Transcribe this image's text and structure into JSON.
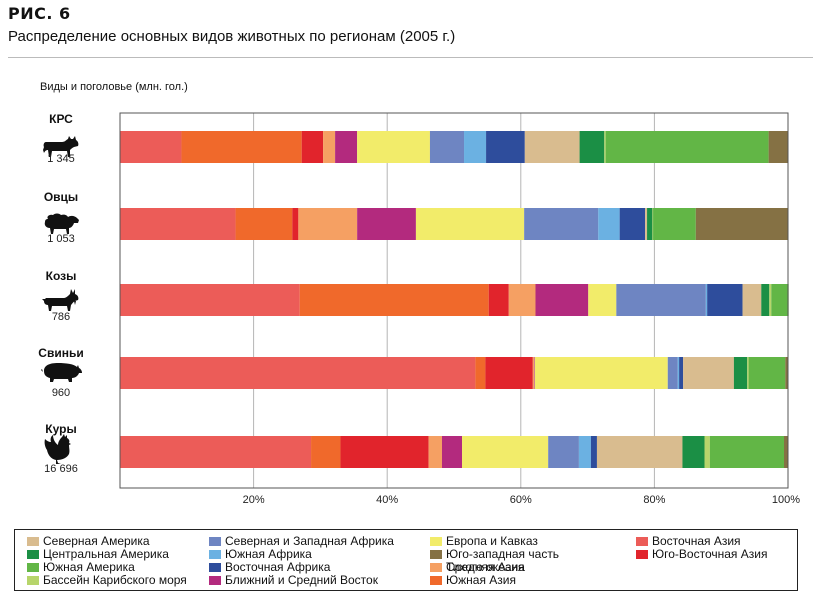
{
  "figure": {
    "label": "РИС.  6",
    "title": "Распределение основных видов животных по регионам (2005 г.)"
  },
  "chart_data": {
    "type": "bar",
    "orientation": "horizontal",
    "stacked": true,
    "ylabel": "Виды и поголовье (млн. гол.)",
    "xlim": [
      0,
      100
    ],
    "xticks": [
      "20%",
      "40%",
      "60%",
      "80%",
      "100%"
    ],
    "grid": true,
    "legend_position": "bottom",
    "categories": [
      {
        "name": "КРС",
        "value": "1 345",
        "icon": "cow-icon"
      },
      {
        "name": "Овцы",
        "value": "1 053",
        "icon": "sheep-icon"
      },
      {
        "name": "Козы",
        "value": "786",
        "icon": "goat-icon"
      },
      {
        "name": "Свиньи",
        "value": "960",
        "icon": "pig-icon"
      },
      {
        "name": "Куры",
        "value": "16 696",
        "icon": "chicken-icon"
      }
    ],
    "series": [
      {
        "name": "Восточная Азия",
        "color": "#EC5C58",
        "values": [
          9.2,
          17.3,
          26.9,
          53.2,
          28.6
        ]
      },
      {
        "name": "Южная Азия",
        "color": "#F0692B",
        "values": [
          18.0,
          8.5,
          28.3,
          1.5,
          4.4
        ]
      },
      {
        "name": "Юго-Восточная Азия",
        "color": "#E1242C",
        "values": [
          3.2,
          0.9,
          3.0,
          7.1,
          13.2
        ]
      },
      {
        "name": "Средняя Азия",
        "color": "#F5A063",
        "values": [
          1.8,
          8.8,
          4.0,
          0.2,
          2.0
        ]
      },
      {
        "name": "Ближний и Средний Восток",
        "color": "#B32A7E",
        "values": [
          3.3,
          8.8,
          7.9,
          0.1,
          3.0
        ]
      },
      {
        "name": "Европа и Кавказ",
        "color": "#F2EC6A",
        "values": [
          10.9,
          16.2,
          4.2,
          19.9,
          12.9
        ]
      },
      {
        "name": "Северная и Западная Африка",
        "color": "#6E85C2",
        "values": [
          5.1,
          11.1,
          13.4,
          1.5,
          4.6
        ]
      },
      {
        "name": "Южная Африка",
        "color": "#6BB1E2",
        "values": [
          3.3,
          3.2,
          0.2,
          0.2,
          1.8
        ]
      },
      {
        "name": "Восточная Африка",
        "color": "#2E4D9C",
        "values": [
          5.8,
          3.8,
          5.3,
          0.6,
          0.9
        ]
      },
      {
        "name": "Северная Америка",
        "color": "#D9BC8F",
        "values": [
          8.2,
          0.3,
          2.8,
          7.6,
          12.8
        ]
      },
      {
        "name": "Центральная Америка",
        "color": "#1B8F45",
        "values": [
          3.7,
          0.8,
          1.2,
          2.0,
          3.3
        ]
      },
      {
        "name": "Бассейн Карибского моря",
        "color": "#B7D56B",
        "values": [
          0.2,
          0.1,
          0.3,
          0.2,
          0.8
        ]
      },
      {
        "name": "Южная Америка",
        "color": "#62B646",
        "values": [
          24.4,
          6.4,
          2.6,
          5.5,
          11.1
        ]
      },
      {
        "name": "Юго-западная часть Тихого океана",
        "color": "#857144",
        "values": [
          2.9,
          13.8,
          0.0,
          0.4,
          0.6
        ]
      }
    ]
  },
  "legend": [
    {
      "label": "Северная Америка",
      "color": "#D9BC8F"
    },
    {
      "label": "Центральная Америка",
      "color": "#1B8F45"
    },
    {
      "label": "Южная Америка",
      "color": "#62B646"
    },
    {
      "label": "Бассейн Карибского моря",
      "color": "#B7D56B"
    },
    {
      "label": "Северная и Западная Африка",
      "color": "#6E85C2"
    },
    {
      "label": "Южная Африка",
      "color": "#6BB1E2"
    },
    {
      "label": "Восточная Африка",
      "color": "#2E4D9C"
    },
    {
      "label": "Ближний и Средний Восток",
      "color": "#B32A7E"
    },
    {
      "label": "Европа и Кавказ",
      "color": "#F2EC6A"
    },
    {
      "label": "Юго-западная часть",
      "label2": "Тихого океана",
      "color": "#857144"
    },
    {
      "label": "Средняя Азия",
      "color": "#F5A063"
    },
    {
      "label": "Южная Азия",
      "color": "#F0692B"
    },
    {
      "label": "Восточная Азия",
      "color": "#EC5C58"
    },
    {
      "label": "Юго-Восточная Азия",
      "color": "#E1242C"
    }
  ]
}
